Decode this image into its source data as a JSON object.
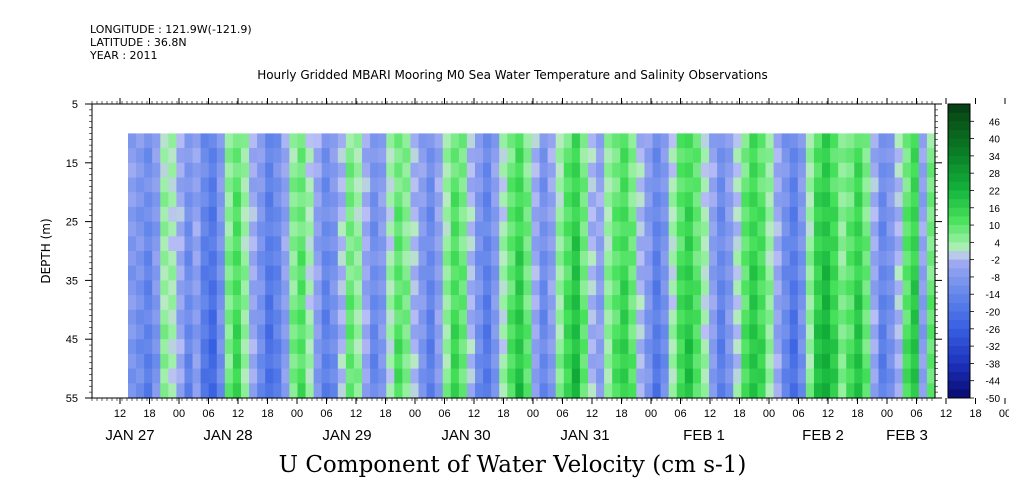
{
  "header": {
    "longitude": "LONGITUDE : 121.9W(-121.9)",
    "latitude": "LATITUDE : 36.8N",
    "year": "YEAR : 2011"
  },
  "chart_data": {
    "type": "heatmap",
    "title": "Hourly Gridded MBARI Mooring M0 Sea Water Temperature and Salinity Observations",
    "xlabel": "",
    "ylabel": "DEPTH (m)",
    "variable_label": "U Component of Water Velocity (cm s-1)",
    "ylim": [
      55,
      5
    ],
    "y_ticks": [
      5,
      15,
      25,
      35,
      45,
      55
    ],
    "data_depth_range": [
      10,
      55
    ],
    "x_hour_ticks": [
      "12",
      "18",
      "00",
      "06",
      "12",
      "18",
      "00",
      "06",
      "12",
      "18",
      "00",
      "06",
      "12",
      "18",
      "00",
      "06",
      "12",
      "18",
      "00",
      "06",
      "12",
      "18",
      "00",
      "06",
      "12",
      "18",
      "00",
      "06",
      "12",
      "18",
      "00",
      "06"
    ],
    "x_day_labels": [
      "JAN 27",
      "JAN 28",
      "JAN 29",
      "JAN 30",
      "JAN 31",
      "FEB  1",
      "FEB  2",
      "FEB  3"
    ],
    "colorbar_ticks": [
      46,
      40,
      34,
      28,
      22,
      16,
      10,
      4,
      -2,
      -8,
      -14,
      -20,
      -26,
      -32,
      -38,
      -44,
      -50
    ],
    "colorbar_range": [
      -50,
      52
    ],
    "column_pattern_cm_s": [
      -8,
      -10,
      -14,
      -8,
      4,
      2,
      -4,
      -12,
      -6,
      -16,
      -20,
      -10,
      6,
      12,
      4,
      -4,
      -10,
      -18,
      -14,
      -6,
      6,
      10,
      2,
      -6,
      -14,
      -10,
      -2,
      8,
      4,
      -4,
      -12,
      -8,
      2,
      10,
      6,
      -2,
      -8,
      -14,
      -6,
      4,
      12,
      8,
      -2,
      -10,
      -16,
      -8,
      2,
      10,
      16,
      8,
      -4,
      -12,
      -6,
      4,
      12,
      18,
      8,
      -2,
      -6,
      4,
      10,
      14,
      8,
      -2,
      -8,
      -16,
      -10,
      2,
      12,
      16,
      10,
      2,
      -6,
      -14,
      -8,
      0,
      10,
      16,
      12,
      4,
      -4,
      -12,
      -18,
      -10,
      4,
      16,
      20,
      14,
      6,
      10,
      16,
      8,
      -4,
      -14,
      -10,
      -2,
      10,
      16,
      -6,
      8
    ],
    "grid": false
  }
}
